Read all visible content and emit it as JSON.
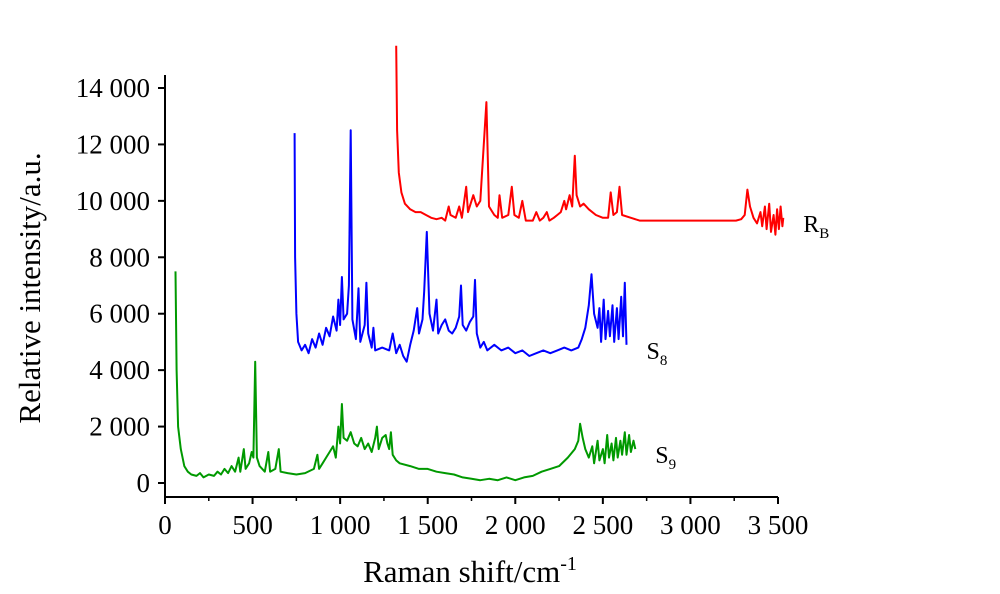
{
  "chart_data": {
    "type": "line",
    "xlabel": "Raman shift/cm",
    "xlabel_sup": "-1",
    "ylabel": "Relative intensity/a.u.",
    "xlim": [
      0,
      3500
    ],
    "ylim": [
      0,
      14000
    ],
    "x_ticks": [
      0,
      500,
      1000,
      1500,
      2000,
      2500,
      3000,
      3500
    ],
    "x_tick_labels": [
      "0",
      "500",
      "1 000",
      "1 500",
      "2 000",
      "2 500",
      "3 000",
      "3 500"
    ],
    "y_ticks": [
      0,
      2000,
      4000,
      6000,
      8000,
      10000,
      12000,
      14000
    ],
    "y_tick_labels": [
      "0",
      "2 000",
      "4 000",
      "6 000",
      "8 000",
      "10 000",
      "12 000",
      "14 000"
    ],
    "series": [
      {
        "name": "R",
        "name_sub": "B",
        "color": "#ff0000",
        "x_offset": 1260,
        "points": [
          [
            60,
            15500
          ],
          [
            65,
            12500
          ],
          [
            75,
            11000
          ],
          [
            90,
            10300
          ],
          [
            110,
            9900
          ],
          [
            140,
            9700
          ],
          [
            170,
            9600
          ],
          [
            200,
            9600
          ],
          [
            230,
            9500
          ],
          [
            260,
            9400
          ],
          [
            290,
            9350
          ],
          [
            320,
            9400
          ],
          [
            340,
            9300
          ],
          [
            360,
            9800
          ],
          [
            370,
            9500
          ],
          [
            400,
            9400
          ],
          [
            420,
            9800
          ],
          [
            435,
            9400
          ],
          [
            460,
            10500
          ],
          [
            470,
            9600
          ],
          [
            500,
            10200
          ],
          [
            520,
            9800
          ],
          [
            540,
            10000
          ],
          [
            575,
            13500
          ],
          [
            590,
            9800
          ],
          [
            620,
            9500
          ],
          [
            640,
            9400
          ],
          [
            650,
            10200
          ],
          [
            665,
            9400
          ],
          [
            700,
            9500
          ],
          [
            720,
            10500
          ],
          [
            735,
            9500
          ],
          [
            760,
            9400
          ],
          [
            780,
            10000
          ],
          [
            800,
            9300
          ],
          [
            840,
            9300
          ],
          [
            860,
            9600
          ],
          [
            880,
            9300
          ],
          [
            900,
            9400
          ],
          [
            920,
            9600
          ],
          [
            935,
            9300
          ],
          [
            960,
            9400
          ],
          [
            980,
            9500
          ],
          [
            1000,
            9600
          ],
          [
            1020,
            10000
          ],
          [
            1030,
            9700
          ],
          [
            1050,
            10200
          ],
          [
            1065,
            9800
          ],
          [
            1080,
            11600
          ],
          [
            1090,
            10200
          ],
          [
            1110,
            9800
          ],
          [
            1130,
            9900
          ],
          [
            1160,
            9700
          ],
          [
            1200,
            9500
          ],
          [
            1240,
            9400
          ],
          [
            1270,
            9400
          ],
          [
            1285,
            10300
          ],
          [
            1300,
            9500
          ],
          [
            1320,
            9600
          ],
          [
            1335,
            10500
          ],
          [
            1350,
            9500
          ],
          [
            1400,
            9400
          ],
          [
            1450,
            9300
          ],
          [
            1500,
            9300
          ],
          [
            1550,
            9300
          ],
          [
            1600,
            9300
          ],
          [
            1650,
            9300
          ],
          [
            1700,
            9300
          ],
          [
            1750,
            9300
          ],
          [
            1800,
            9300
          ],
          [
            1850,
            9300
          ],
          [
            1900,
            9300
          ],
          [
            1950,
            9300
          ],
          [
            2000,
            9300
          ],
          [
            2030,
            9350
          ],
          [
            2050,
            9500
          ],
          [
            2065,
            10400
          ],
          [
            2080,
            9800
          ],
          [
            2100,
            9400
          ],
          [
            2120,
            9200
          ],
          [
            2140,
            9600
          ],
          [
            2150,
            9100
          ],
          [
            2165,
            9800
          ],
          [
            2175,
            9000
          ],
          [
            2190,
            9900
          ],
          [
            2200,
            8900
          ],
          [
            2215,
            9500
          ],
          [
            2225,
            8800
          ],
          [
            2235,
            9700
          ],
          [
            2245,
            9000
          ],
          [
            2255,
            9800
          ],
          [
            2265,
            9100
          ],
          [
            2270,
            9400
          ]
        ]
      },
      {
        "name": "S",
        "name_sub": "8",
        "color": "#0000ff",
        "x_offset": 680,
        "points": [
          [
            60,
            12400
          ],
          [
            63,
            8000
          ],
          [
            70,
            6000
          ],
          [
            80,
            5000
          ],
          [
            100,
            4700
          ],
          [
            120,
            4900
          ],
          [
            140,
            4600
          ],
          [
            160,
            5100
          ],
          [
            180,
            4800
          ],
          [
            200,
            5300
          ],
          [
            220,
            4900
          ],
          [
            240,
            5500
          ],
          [
            260,
            5200
          ],
          [
            280,
            5900
          ],
          [
            300,
            5400
          ],
          [
            310,
            6500
          ],
          [
            320,
            5600
          ],
          [
            330,
            7300
          ],
          [
            340,
            5800
          ],
          [
            360,
            6000
          ],
          [
            370,
            7000
          ],
          [
            380,
            12500
          ],
          [
            390,
            5800
          ],
          [
            410,
            5100
          ],
          [
            425,
            6900
          ],
          [
            435,
            5000
          ],
          [
            460,
            5600
          ],
          [
            470,
            7100
          ],
          [
            480,
            5300
          ],
          [
            500,
            4800
          ],
          [
            510,
            5500
          ],
          [
            520,
            4700
          ],
          [
            560,
            4800
          ],
          [
            600,
            4700
          ],
          [
            620,
            5300
          ],
          [
            640,
            4600
          ],
          [
            660,
            4900
          ],
          [
            680,
            4500
          ],
          [
            700,
            4300
          ],
          [
            720,
            4900
          ],
          [
            740,
            5400
          ],
          [
            760,
            6200
          ],
          [
            770,
            5300
          ],
          [
            790,
            5800
          ],
          [
            800,
            6800
          ],
          [
            815,
            8900
          ],
          [
            830,
            6000
          ],
          [
            850,
            5400
          ],
          [
            870,
            6500
          ],
          [
            880,
            5300
          ],
          [
            900,
            5600
          ],
          [
            920,
            5800
          ],
          [
            940,
            5400
          ],
          [
            960,
            5300
          ],
          [
            980,
            5500
          ],
          [
            1000,
            5900
          ],
          [
            1010,
            7000
          ],
          [
            1020,
            5600
          ],
          [
            1040,
            5400
          ],
          [
            1060,
            5700
          ],
          [
            1080,
            5900
          ],
          [
            1090,
            7200
          ],
          [
            1100,
            5300
          ],
          [
            1120,
            4800
          ],
          [
            1140,
            5000
          ],
          [
            1160,
            4700
          ],
          [
            1200,
            4900
          ],
          [
            1240,
            4700
          ],
          [
            1280,
            4800
          ],
          [
            1320,
            4600
          ],
          [
            1360,
            4700
          ],
          [
            1400,
            4500
          ],
          [
            1440,
            4600
          ],
          [
            1480,
            4700
          ],
          [
            1520,
            4600
          ],
          [
            1560,
            4700
          ],
          [
            1600,
            4800
          ],
          [
            1640,
            4700
          ],
          [
            1680,
            4800
          ],
          [
            1700,
            5100
          ],
          [
            1720,
            5500
          ],
          [
            1740,
            6300
          ],
          [
            1755,
            7400
          ],
          [
            1770,
            6000
          ],
          [
            1790,
            5500
          ],
          [
            1800,
            6200
          ],
          [
            1810,
            5000
          ],
          [
            1825,
            6500
          ],
          [
            1835,
            5100
          ],
          [
            1850,
            6100
          ],
          [
            1860,
            5200
          ],
          [
            1875,
            6300
          ],
          [
            1885,
            5000
          ],
          [
            1900,
            6200
          ],
          [
            1910,
            5100
          ],
          [
            1925,
            6600
          ],
          [
            1935,
            5200
          ],
          [
            1945,
            7100
          ],
          [
            1955,
            4900
          ]
        ]
      },
      {
        "name": "S",
        "name_sub": "9",
        "color": "#009900",
        "x_offset": 0,
        "points": [
          [
            60,
            7500
          ],
          [
            66,
            4000
          ],
          [
            75,
            2000
          ],
          [
            90,
            1200
          ],
          [
            110,
            600
          ],
          [
            130,
            400
          ],
          [
            150,
            300
          ],
          [
            180,
            250
          ],
          [
            200,
            350
          ],
          [
            220,
            200
          ],
          [
            250,
            300
          ],
          [
            280,
            250
          ],
          [
            300,
            400
          ],
          [
            320,
            300
          ],
          [
            340,
            500
          ],
          [
            360,
            350
          ],
          [
            380,
            600
          ],
          [
            400,
            400
          ],
          [
            420,
            900
          ],
          [
            430,
            400
          ],
          [
            450,
            1200
          ],
          [
            460,
            500
          ],
          [
            480,
            700
          ],
          [
            495,
            1100
          ],
          [
            505,
            900
          ],
          [
            515,
            4300
          ],
          [
            525,
            900
          ],
          [
            540,
            600
          ],
          [
            570,
            400
          ],
          [
            590,
            1100
          ],
          [
            600,
            400
          ],
          [
            630,
            500
          ],
          [
            650,
            1200
          ],
          [
            660,
            400
          ],
          [
            700,
            350
          ],
          [
            750,
            300
          ],
          [
            800,
            350
          ],
          [
            850,
            500
          ],
          [
            870,
            1000
          ],
          [
            880,
            500
          ],
          [
            900,
            700
          ],
          [
            920,
            900
          ],
          [
            940,
            1100
          ],
          [
            960,
            1300
          ],
          [
            975,
            900
          ],
          [
            990,
            2000
          ],
          [
            1000,
            1400
          ],
          [
            1010,
            2800
          ],
          [
            1020,
            1600
          ],
          [
            1040,
            1500
          ],
          [
            1060,
            1800
          ],
          [
            1080,
            1400
          ],
          [
            1100,
            1300
          ],
          [
            1120,
            1600
          ],
          [
            1140,
            1200
          ],
          [
            1160,
            1400
          ],
          [
            1180,
            1100
          ],
          [
            1200,
            1600
          ],
          [
            1210,
            2000
          ],
          [
            1220,
            1200
          ],
          [
            1240,
            1600
          ],
          [
            1260,
            1700
          ],
          [
            1270,
            1400
          ],
          [
            1280,
            1200
          ],
          [
            1290,
            1800
          ],
          [
            1300,
            1000
          ],
          [
            1320,
            800
          ],
          [
            1340,
            700
          ],
          [
            1400,
            600
          ],
          [
            1450,
            500
          ],
          [
            1500,
            500
          ],
          [
            1550,
            400
          ],
          [
            1600,
            350
          ],
          [
            1650,
            300
          ],
          [
            1700,
            200
          ],
          [
            1750,
            150
          ],
          [
            1800,
            100
          ],
          [
            1850,
            150
          ],
          [
            1900,
            100
          ],
          [
            1950,
            200
          ],
          [
            2000,
            100
          ],
          [
            2050,
            200
          ],
          [
            2100,
            250
          ],
          [
            2150,
            400
          ],
          [
            2200,
            500
          ],
          [
            2250,
            600
          ],
          [
            2300,
            900
          ],
          [
            2340,
            1200
          ],
          [
            2360,
            1500
          ],
          [
            2370,
            2100
          ],
          [
            2385,
            1600
          ],
          [
            2400,
            1200
          ],
          [
            2420,
            900
          ],
          [
            2440,
            1300
          ],
          [
            2450,
            700
          ],
          [
            2470,
            1500
          ],
          [
            2480,
            800
          ],
          [
            2500,
            1200
          ],
          [
            2510,
            700
          ],
          [
            2525,
            1700
          ],
          [
            2535,
            900
          ],
          [
            2550,
            1400
          ],
          [
            2560,
            800
          ],
          [
            2575,
            1600
          ],
          [
            2585,
            900
          ],
          [
            2600,
            1500
          ],
          [
            2610,
            1000
          ],
          [
            2625,
            1800
          ],
          [
            2635,
            1000
          ],
          [
            2650,
            1700
          ],
          [
            2660,
            1100
          ],
          [
            2675,
            1500
          ],
          [
            2685,
            1200
          ]
        ]
      }
    ]
  }
}
